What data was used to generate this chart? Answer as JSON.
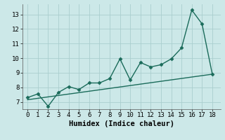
{
  "xlabel": "Humidex (Indice chaleur)",
  "bg_color": "#cce8e8",
  "grid_color": "#aacece",
  "line_color": "#1a6b5a",
  "trend_color": "#1a6b5a",
  "x_data": [
    0,
    1,
    2,
    3,
    4,
    5,
    6,
    7,
    8,
    9,
    10,
    11,
    12,
    13,
    14,
    15,
    16,
    17,
    18
  ],
  "y_data": [
    7.3,
    7.55,
    6.7,
    7.65,
    8.05,
    7.85,
    8.3,
    8.3,
    8.6,
    9.95,
    8.5,
    9.7,
    9.4,
    9.55,
    9.95,
    10.7,
    13.3,
    12.35,
    8.9
  ],
  "trend_x": [
    0,
    18
  ],
  "trend_y": [
    7.15,
    8.9
  ],
  "xlim": [
    -0.5,
    18.8
  ],
  "ylim": [
    6.5,
    13.7
  ],
  "yticks": [
    7,
    8,
    9,
    10,
    11,
    12,
    13
  ],
  "xticks": [
    0,
    1,
    2,
    3,
    4,
    5,
    6,
    7,
    8,
    9,
    10,
    11,
    12,
    13,
    14,
    15,
    16,
    17,
    18
  ],
  "marker": "D",
  "marker_size": 2.5,
  "linewidth": 1.0,
  "tick_fontsize": 6.5,
  "label_fontsize": 7.5
}
